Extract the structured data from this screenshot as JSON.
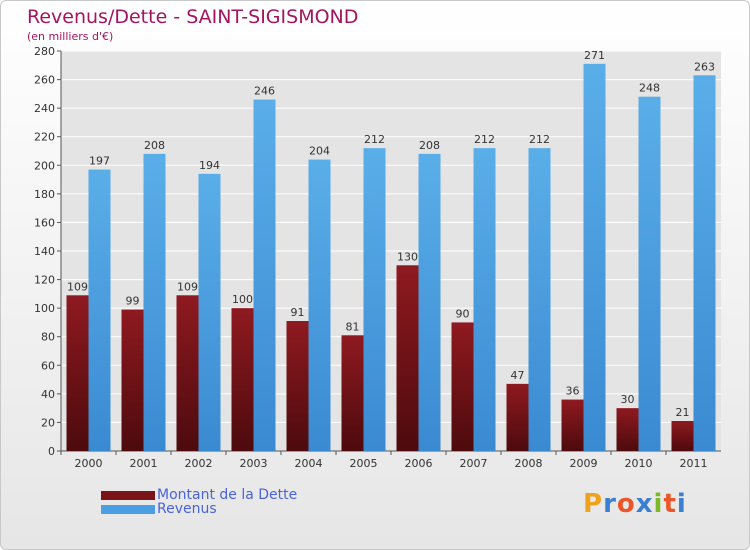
{
  "chart_data": {
    "type": "bar",
    "title": "Revenus/Dette - SAINT-SIGISMOND",
    "subtitle": "(en milliers d'€)",
    "categories": [
      "2000",
      "2001",
      "2002",
      "2003",
      "2004",
      "2005",
      "2006",
      "2007",
      "2008",
      "2009",
      "2010",
      "2011"
    ],
    "series": [
      {
        "name": "Montant de la Dette",
        "color": "#7a1418",
        "values": [
          109,
          99,
          109,
          100,
          91,
          81,
          130,
          90,
          47,
          36,
          30,
          21
        ]
      },
      {
        "name": "Revenus",
        "color": "#4a9ee2",
        "values": [
          197,
          208,
          194,
          246,
          204,
          212,
          208,
          212,
          212,
          271,
          248,
          263
        ]
      }
    ],
    "ylim": [
      0,
      280
    ],
    "yticks": [
      0,
      20,
      40,
      60,
      80,
      100,
      120,
      140,
      160,
      180,
      200,
      220,
      240,
      260,
      280
    ],
    "grid": true,
    "legend": "bottom-left"
  },
  "legend": {
    "items": [
      {
        "label": "Montant de la Dette",
        "color": "#7a1418"
      },
      {
        "label": "Revenus",
        "color": "#4a9ee2"
      }
    ]
  },
  "logo": {
    "letters": [
      "P",
      "r",
      "o",
      "x",
      "i",
      "t",
      "i"
    ],
    "colors": [
      "#f0a11d",
      "#3a7fd0",
      "#e8562a",
      "#3a7fd0",
      "#7bb92b",
      "#e8562a",
      "#3a7fd0"
    ]
  }
}
